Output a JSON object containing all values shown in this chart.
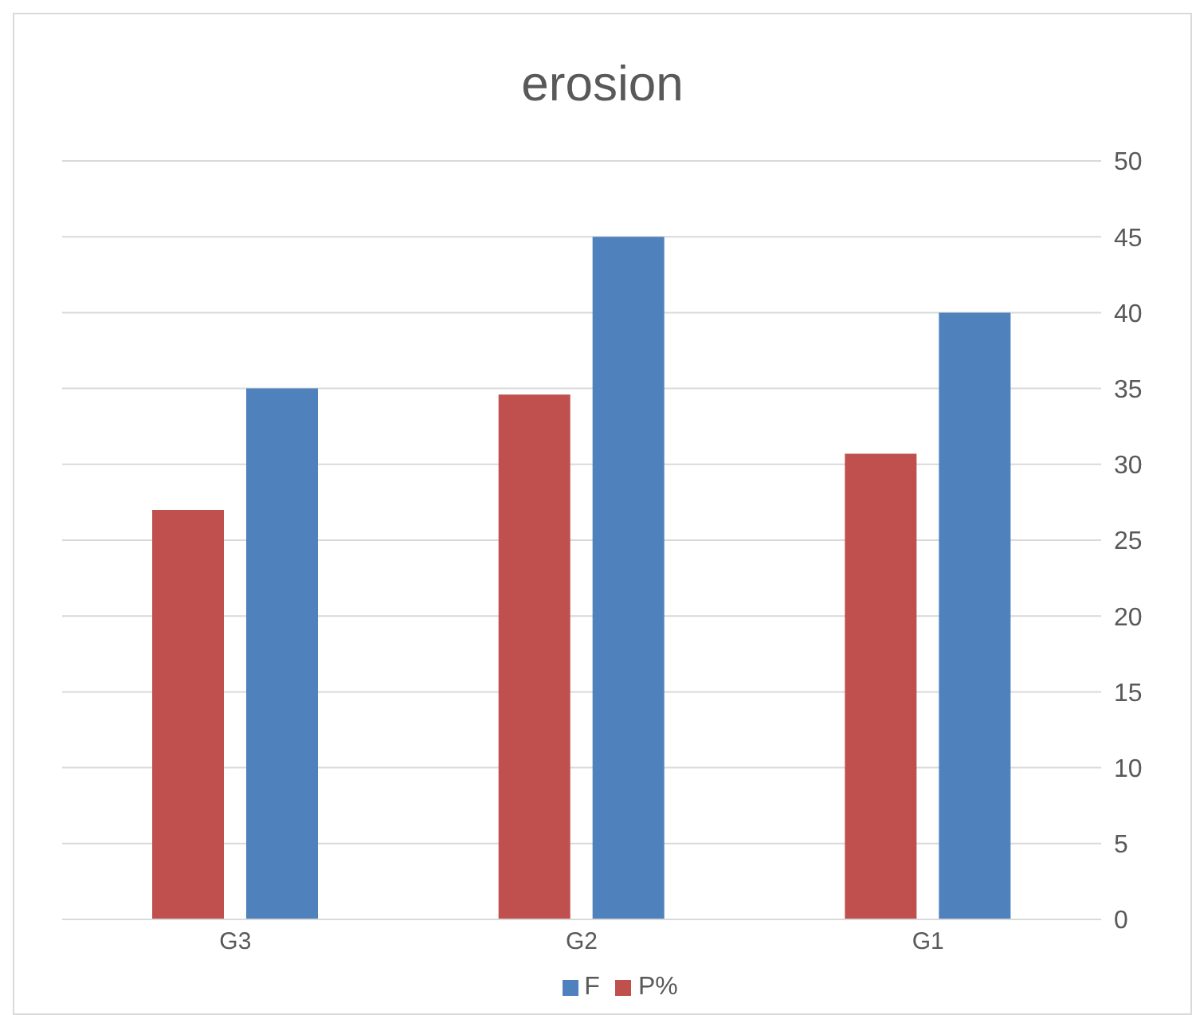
{
  "chart_data": {
    "type": "bar",
    "title": "erosion",
    "categories": [
      "G3",
      "G2",
      "G1"
    ],
    "series": [
      {
        "name": "P%",
        "color": "#c0504d",
        "values": [
          27,
          34.6,
          30.7
        ]
      },
      {
        "name": "F",
        "color": "#4f81bd",
        "values": [
          35,
          45,
          40
        ]
      }
    ],
    "ylim": [
      0,
      50
    ],
    "yticks": [
      0,
      5,
      10,
      15,
      20,
      25,
      30,
      35,
      40,
      45,
      50
    ],
    "grid": "y",
    "legend": "bottom"
  }
}
